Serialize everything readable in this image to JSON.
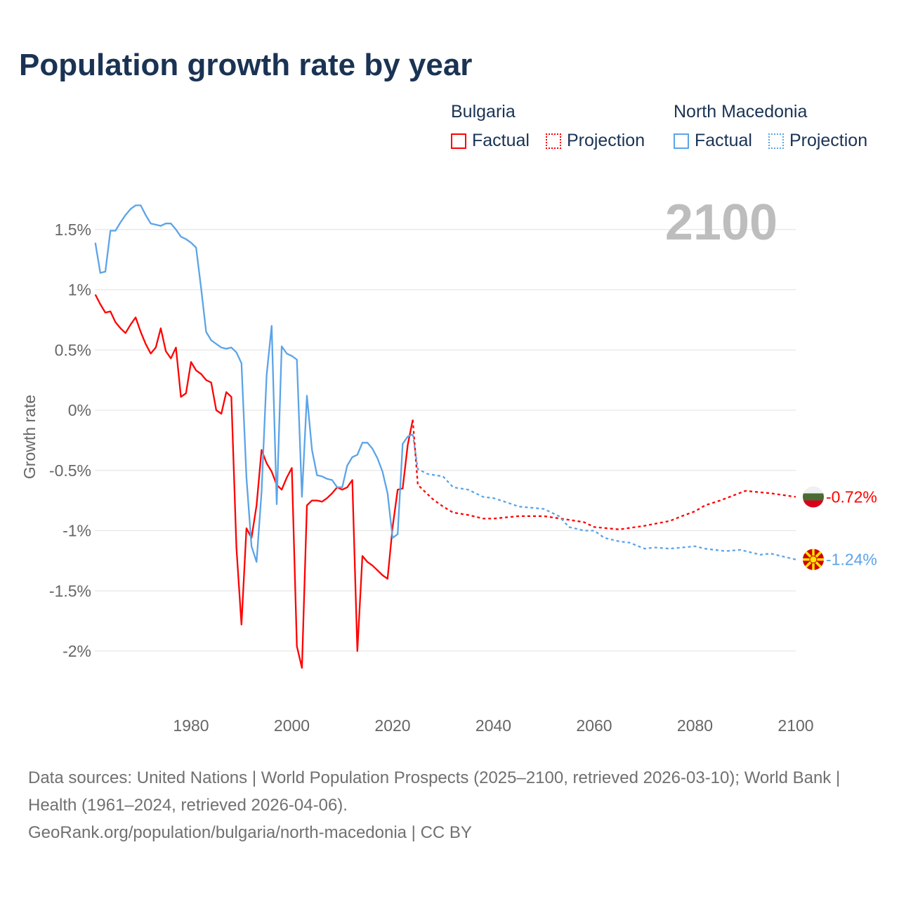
{
  "title": "Population growth rate by year",
  "legend": {
    "groups": [
      {
        "name": "Bulgaria",
        "color": "#ff0000",
        "factual": "Factual",
        "projection": "Projection"
      },
      {
        "name": "North Macedonia",
        "color": "#5ba4e8",
        "factual": "Factual",
        "projection": "Projection"
      }
    ]
  },
  "current_year": "2100",
  "footer": {
    "sources": "Data sources: United Nations | World Population Prospects (2025–2100, retrieved 2026-03-10); World Bank | Health (1961–2024, retrieved 2026-04-06).",
    "credit": "GeoRank.org/population/bulgaria/north-macedonia | CC BY"
  },
  "chart_data": {
    "type": "line",
    "title": "Population growth rate by year",
    "xlabel": "",
    "ylabel": "Growth rate",
    "xlim": [
      1961,
      2100
    ],
    "ylim": [
      -2.35,
      1.95
    ],
    "grid": true,
    "legend_position": "top-right",
    "x_ticks": [
      1980,
      2000,
      2020,
      2040,
      2060,
      2080,
      2100
    ],
    "x_tick_labels": [
      "1980",
      "2000",
      "2020",
      "2040",
      "2060",
      "2080",
      "2100"
    ],
    "y_ticks": [
      1.5,
      1,
      0.5,
      0,
      -0.5,
      -1,
      -1.5,
      -2
    ],
    "y_tick_labels": [
      "1.5%",
      "1%",
      "0.5%",
      "0%",
      "-0.5%",
      "-1%",
      "-1.5%",
      "-2%"
    ],
    "end_labels": [
      {
        "series": "Bulgaria",
        "text": "-0.72%"
      },
      {
        "series": "North Macedonia",
        "text": "-1.24%"
      }
    ],
    "series": [
      {
        "name": "Bulgaria",
        "kind": "Factual",
        "color": "#ff0000",
        "x": [
          1961,
          1962,
          1963,
          1964,
          1965,
          1966,
          1967,
          1968,
          1969,
          1970,
          1971,
          1972,
          1973,
          1974,
          1975,
          1976,
          1977,
          1978,
          1979,
          1980,
          1981,
          1982,
          1983,
          1984,
          1985,
          1986,
          1987,
          1988,
          1989,
          1990,
          1991,
          1992,
          1993,
          1994,
          1995,
          1996,
          1997,
          1998,
          1999,
          2000,
          2001,
          2002,
          2003,
          2004,
          2005,
          2006,
          2007,
          2008,
          2009,
          2010,
          2011,
          2012,
          2013,
          2014,
          2015,
          2016,
          2017,
          2018,
          2019,
          2020,
          2021,
          2022,
          2023,
          2024
        ],
        "y": [
          0.96,
          0.88,
          0.81,
          0.82,
          0.73,
          0.68,
          0.64,
          0.71,
          0.77,
          0.65,
          0.55,
          0.47,
          0.52,
          0.68,
          0.49,
          0.43,
          0.52,
          0.11,
          0.14,
          0.4,
          0.33,
          0.3,
          0.25,
          0.23,
          0.0,
          -0.03,
          0.15,
          0.11,
          -1.14,
          -1.78,
          -0.98,
          -1.06,
          -0.79,
          -0.33,
          -0.44,
          -0.51,
          -0.62,
          -0.66,
          -0.56,
          -0.48,
          -1.96,
          -2.14,
          -0.79,
          -0.75,
          -0.75,
          -0.76,
          -0.73,
          -0.69,
          -0.64,
          -0.66,
          -0.64,
          -0.58,
          -2.0,
          -1.21,
          -1.26,
          -1.29,
          -1.33,
          -1.37,
          -1.4,
          -0.97,
          -0.66,
          -0.65,
          -0.29,
          -0.08
        ]
      },
      {
        "name": "Bulgaria",
        "kind": "Projection",
        "color": "#ff0000",
        "x": [
          2024,
          2025,
          2026,
          2028,
          2030,
          2032,
          2035,
          2038,
          2040,
          2045,
          2050,
          2055,
          2058,
          2060,
          2065,
          2070,
          2075,
          2078,
          2080,
          2082,
          2085,
          2090,
          2095,
          2100
        ],
        "y": [
          -0.08,
          -0.62,
          -0.66,
          -0.74,
          -0.8,
          -0.85,
          -0.87,
          -0.9,
          -0.9,
          -0.88,
          -0.88,
          -0.91,
          -0.93,
          -0.97,
          -0.99,
          -0.96,
          -0.92,
          -0.87,
          -0.84,
          -0.79,
          -0.75,
          -0.67,
          -0.69,
          -0.72
        ]
      },
      {
        "name": "North Macedonia",
        "kind": "Factual",
        "color": "#5ba4e8",
        "x": [
          1961,
          1962,
          1963,
          1964,
          1965,
          1966,
          1967,
          1968,
          1969,
          1970,
          1971,
          1972,
          1973,
          1974,
          1975,
          1976,
          1977,
          1978,
          1979,
          1980,
          1981,
          1982,
          1983,
          1984,
          1985,
          1986,
          1987,
          1988,
          1989,
          1990,
          1991,
          1992,
          1993,
          1994,
          1995,
          1996,
          1997,
          1998,
          1999,
          2000,
          2001,
          2002,
          2003,
          2004,
          2005,
          2006,
          2007,
          2008,
          2009,
          2010,
          2011,
          2012,
          2013,
          2014,
          2015,
          2016,
          2017,
          2018,
          2019,
          2020,
          2021,
          2022,
          2023,
          2024
        ],
        "y": [
          1.39,
          1.14,
          1.15,
          1.49,
          1.49,
          1.56,
          1.62,
          1.67,
          1.7,
          1.7,
          1.62,
          1.55,
          1.54,
          1.53,
          1.55,
          1.55,
          1.5,
          1.44,
          1.42,
          1.39,
          1.35,
          1.01,
          0.65,
          0.58,
          0.55,
          0.52,
          0.51,
          0.52,
          0.48,
          0.39,
          -0.56,
          -1.13,
          -1.26,
          -0.68,
          0.29,
          0.7,
          -0.78,
          0.53,
          0.47,
          0.45,
          0.42,
          -0.72,
          0.12,
          -0.33,
          -0.54,
          -0.55,
          -0.57,
          -0.58,
          -0.64,
          -0.64,
          -0.46,
          -0.39,
          -0.37,
          -0.27,
          -0.27,
          -0.32,
          -0.4,
          -0.51,
          -0.69,
          -1.06,
          -1.03,
          -0.28,
          -0.22,
          -0.2
        ]
      },
      {
        "name": "North Macedonia",
        "kind": "Projection",
        "color": "#5ba4e8",
        "x": [
          2024,
          2025,
          2027,
          2030,
          2032,
          2035,
          2038,
          2040,
          2043,
          2045,
          2050,
          2053,
          2055,
          2058,
          2060,
          2062,
          2065,
          2067,
          2070,
          2072,
          2075,
          2080,
          2082,
          2086,
          2089,
          2093,
          2095,
          2100
        ],
        "y": [
          -0.2,
          -0.49,
          -0.53,
          -0.55,
          -0.64,
          -0.66,
          -0.72,
          -0.73,
          -0.77,
          -0.8,
          -0.82,
          -0.88,
          -0.97,
          -1.0,
          -1.0,
          -1.06,
          -1.09,
          -1.1,
          -1.15,
          -1.14,
          -1.15,
          -1.13,
          -1.15,
          -1.17,
          -1.16,
          -1.2,
          -1.19,
          -1.24
        ]
      }
    ]
  }
}
